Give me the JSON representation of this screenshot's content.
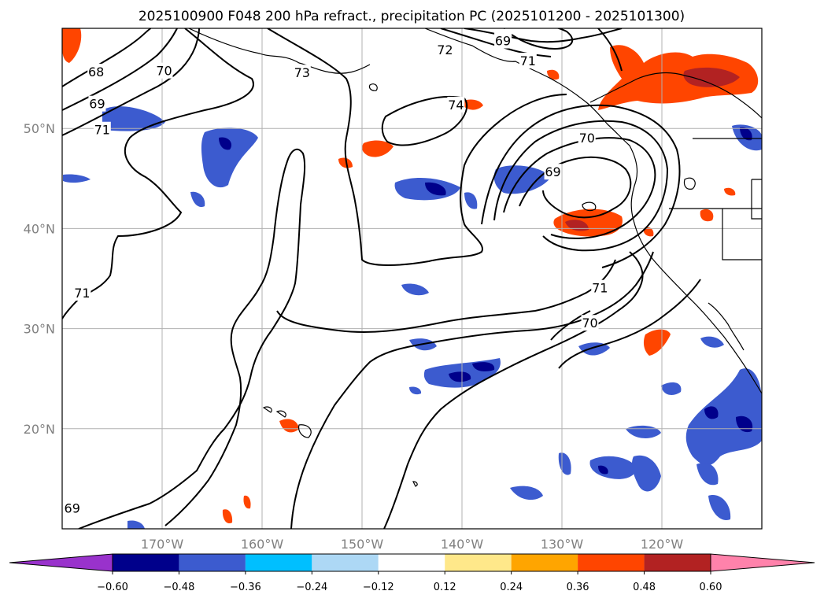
{
  "title": "2025100900 F048 200 hPa refract., precipitation PC (2025101200 - 2025101300)",
  "map": {
    "lon_range": [
      -180,
      -110
    ],
    "lat_range": [
      10,
      60
    ],
    "lon_ticks": [
      {
        "value": -170,
        "label": "170°W"
      },
      {
        "value": -160,
        "label": "160°W"
      },
      {
        "value": -150,
        "label": "150°W"
      },
      {
        "value": -140,
        "label": "140°W"
      },
      {
        "value": -130,
        "label": "130°W"
      },
      {
        "value": -120,
        "label": "120°W"
      }
    ],
    "lat_ticks": [
      {
        "value": 50,
        "label": "50°N"
      },
      {
        "value": 40,
        "label": "40°N"
      },
      {
        "value": 30,
        "label": "30°N"
      },
      {
        "value": 20,
        "label": "20°N"
      }
    ],
    "grid": true,
    "contour_labels": [
      {
        "text": "69",
        "lon": -179,
        "lat": 12.0
      },
      {
        "text": "71",
        "lon": -178,
        "lat": 33.5
      },
      {
        "text": "71",
        "lon": -176,
        "lat": 49.8
      },
      {
        "text": "69",
        "lon": -176.5,
        "lat": 52.4
      },
      {
        "text": "68",
        "lon": -176.6,
        "lat": 55.6
      },
      {
        "text": "70",
        "lon": -169.8,
        "lat": 55.7
      },
      {
        "text": "73",
        "lon": -156.0,
        "lat": 55.5
      },
      {
        "text": "74",
        "lon": -140.6,
        "lat": 52.3
      },
      {
        "text": "72",
        "lon": -141.7,
        "lat": 57.8
      },
      {
        "text": "69",
        "lon": -135.9,
        "lat": 58.7
      },
      {
        "text": "71",
        "lon": -133.4,
        "lat": 56.7
      },
      {
        "text": "70",
        "lon": -127.5,
        "lat": 49.0
      },
      {
        "text": "69",
        "lon": -130.9,
        "lat": 45.6
      },
      {
        "text": "71",
        "lon": -126.2,
        "lat": 34.0
      },
      {
        "text": "70",
        "lon": -127.2,
        "lat": 30.5
      }
    ]
  },
  "colorbar": {
    "ticks": [
      "−0.60",
      "−0.48",
      "−0.36",
      "−0.24",
      "−0.12",
      "0.12",
      "0.24",
      "0.36",
      "0.48",
      "0.60"
    ],
    "colors": [
      "#9932cc",
      "#00008b",
      "#3c5bcf",
      "#00bfff",
      "#add8f5",
      "#ffffff",
      "#ffe88a",
      "#ffa500",
      "#ff4500",
      "#b22222",
      "#ff82ab"
    ]
  }
}
